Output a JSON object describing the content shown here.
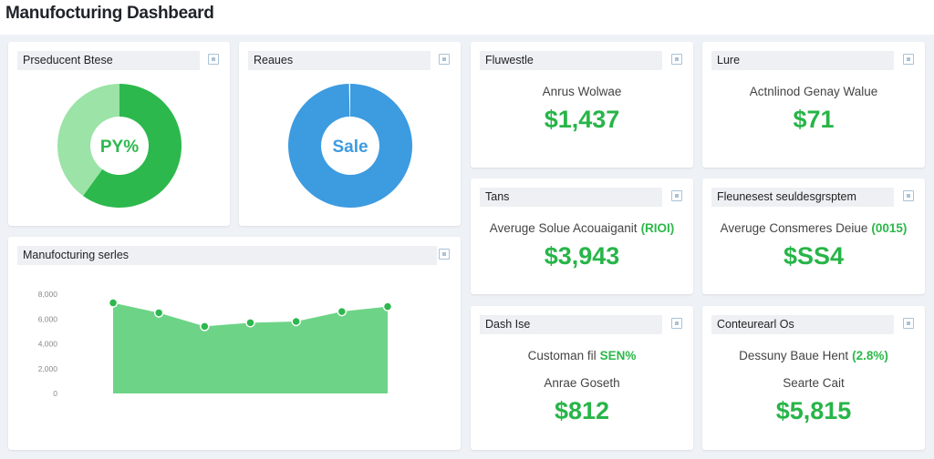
{
  "header": {
    "title": "Manufocturing Dashbeard"
  },
  "donuts": [
    {
      "title": "Prseducent Btese",
      "center": "PY%",
      "values": [
        60,
        40
      ],
      "colors": [
        "#2db84d",
        "#9be3a6"
      ],
      "center_color": "#2db84d"
    },
    {
      "title": "Reaues",
      "center": "Sale",
      "values": [
        100
      ],
      "colors": [
        "#3d9be0"
      ],
      "center_color": "#3d9be0"
    }
  ],
  "kpis": [
    {
      "title": "Fluwestle",
      "lines": [
        {
          "text": "Anrus Wolwae"
        }
      ],
      "value": "$1,437"
    },
    {
      "title": "Lure",
      "lines": [
        {
          "text": "Actnlinod Genay Walue"
        }
      ],
      "value": "$71"
    },
    {
      "title": "Tans",
      "lines": [
        {
          "text": "Averuge Solue Acouaiganit",
          "note": "(RIOI)"
        }
      ],
      "value": "$3,943"
    },
    {
      "title": "Fleunesest seuldesgrsptem",
      "lines": [
        {
          "text": "Averuge Consmeres Deiue",
          "note": "(0015)"
        }
      ],
      "value": "$SS4"
    },
    {
      "title": "Dash Ise",
      "lines": [
        {
          "text": "Customan fil",
          "note": "SEN%"
        },
        {
          "text": "Anrae Goseth"
        }
      ],
      "value": "$812"
    },
    {
      "title": "Conteurearl Os",
      "lines": [
        {
          "text": "Dessuny Baue Hent",
          "note": "(2.8%)"
        },
        {
          "text": "Searte Cait"
        }
      ],
      "value": "$5,815"
    }
  ],
  "chart_data": {
    "type": "area",
    "title": "Manufocturing serles",
    "categories": [
      null,
      null,
      null,
      null,
      null,
      null,
      null
    ],
    "values": [
      7300,
      6500,
      5400,
      5700,
      5800,
      6600,
      7000
    ],
    "color": "#6dd487",
    "point_color": "#2db84d",
    "ylim": [
      0,
      8000
    ],
    "yticks": [
      0,
      {
        "value": 2000,
        "label": "2,000"
      },
      {
        "value": 4000,
        "label": "4,000"
      },
      {
        "value": 6000,
        "label": "6,000"
      },
      {
        "value": 8000,
        "label": "8,000"
      }
    ],
    "grid": false
  }
}
